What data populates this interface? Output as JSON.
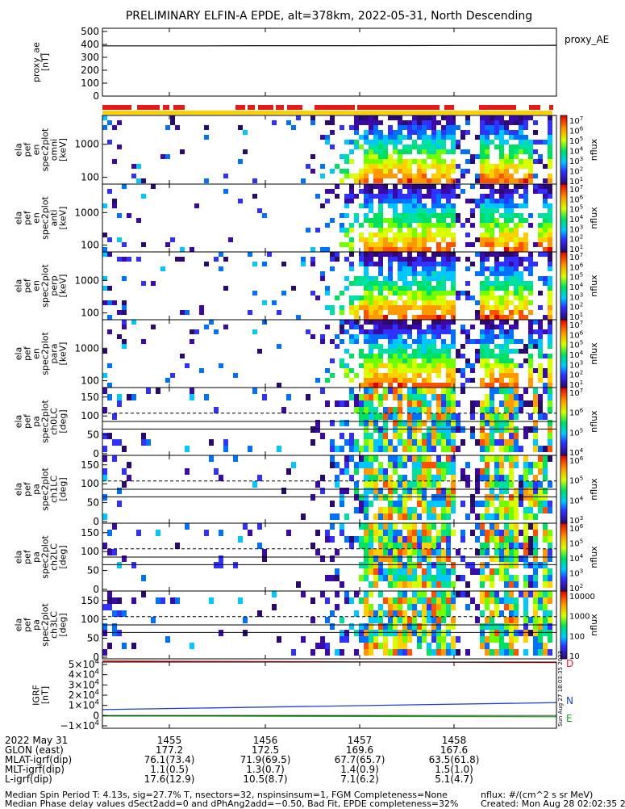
{
  "title": "PRELIMINARY ELFIN-A EPDE, alt=378km, 2022-05-31, North Descending",
  "colors": {
    "red": "#e41a1c",
    "blue": "#1f3fd6",
    "green": "#1aa31a",
    "yellow": "#ffd000"
  },
  "chart_data": {
    "type": "heatmap",
    "panels": [
      {
        "id": "proxy_ae",
        "kind": "line",
        "ylabel": [
          "proxy_ae",
          "[nT]"
        ],
        "legend": "proxy_AE",
        "yticks": [
          "500",
          "400",
          "300",
          "200",
          "100",
          "0"
        ],
        "ylim": [
          0,
          520
        ],
        "series": [
          {
            "values": [
              385,
              385,
              385,
              386,
              386,
              386,
              387,
              388,
              388,
              389
            ]
          }
        ]
      },
      {
        "id": "en_omni",
        "kind": "spectrogram",
        "ylabel": [
          "ela",
          "pef",
          "en",
          "spec2plot",
          "omni",
          "[keV]"
        ],
        "yticks": [
          "1000",
          "100"
        ],
        "log": true,
        "cbar": {
          "label": "nflux",
          "ticks": [
            "10^7",
            "10^6",
            "10^5",
            "10^4",
            "10^3",
            "10^2",
            "10^1"
          ]
        }
      },
      {
        "id": "en_anti",
        "kind": "spectrogram",
        "ylabel": [
          "ela",
          "pef",
          "en",
          "spec2plot",
          "anti",
          "[keV]"
        ],
        "yticks": [
          "1000",
          "100"
        ],
        "log": true,
        "cbar": {
          "label": "nflux",
          "ticks": [
            "10^7",
            "10^6",
            "10^5",
            "10^4",
            "10^3",
            "10^2",
            "10^1"
          ]
        }
      },
      {
        "id": "en_perp",
        "kind": "spectrogram",
        "ylabel": [
          "ela",
          "pef",
          "en",
          "spec2plot",
          "perp",
          "[keV]"
        ],
        "yticks": [
          "1000",
          "100"
        ],
        "log": true,
        "cbar": {
          "label": "nflux",
          "ticks": [
            "10^7",
            "10^6",
            "10^5",
            "10^4",
            "10^3",
            "10^2",
            "10^1"
          ]
        }
      },
      {
        "id": "en_para",
        "kind": "spectrogram",
        "ylabel": [
          "ela",
          "pef",
          "en",
          "spec2plot",
          "para",
          "[keV]"
        ],
        "yticks": [
          "1000",
          "100"
        ],
        "log": true,
        "cbar": {
          "label": "nflux",
          "ticks": [
            "10^7",
            "10^6",
            "10^5",
            "10^4",
            "10^3",
            "10^2",
            "10^1"
          ]
        }
      },
      {
        "id": "pa_ch0",
        "kind": "spectrogram",
        "ylabel": [
          "ela",
          "pef",
          "pa",
          "spec2plot",
          "ch0LC",
          "[deg]"
        ],
        "yticks": [
          "150",
          "100",
          "50",
          "0"
        ],
        "cbar": {
          "label": "nflux",
          "ticks": [
            "10^7",
            "10^6",
            "10^5",
            "10^4"
          ]
        }
      },
      {
        "id": "pa_ch1",
        "kind": "spectrogram",
        "ylabel": [
          "ela",
          "pef",
          "pa",
          "spec2plot",
          "ch1LC",
          "[deg]"
        ],
        "yticks": [
          "150",
          "100",
          "50",
          "0"
        ],
        "cbar": {
          "label": "nflux",
          "ticks": [
            "10^6",
            "10^5",
            "10^4",
            "10^3"
          ]
        }
      },
      {
        "id": "pa_ch2",
        "kind": "spectrogram",
        "ylabel": [
          "ela",
          "pef",
          "pa",
          "spec2plot",
          "ch2LC",
          "[deg]"
        ],
        "yticks": [
          "150",
          "100",
          "50",
          "0"
        ],
        "cbar": {
          "label": "nflux",
          "ticks": [
            "10^6",
            "10^5",
            "10^4",
            "10^3",
            "10^2"
          ]
        }
      },
      {
        "id": "pa_ch3",
        "kind": "spectrogram",
        "ylabel": [
          "ela",
          "pef",
          "pa",
          "spec2plot",
          "ch3LC",
          "[deg]"
        ],
        "yticks": [
          "150",
          "100",
          "50",
          "0"
        ],
        "cbar": {
          "label": "nflux",
          "ticks": [
            "10000",
            "1000",
            "100",
            "10"
          ]
        }
      },
      {
        "id": "igrf",
        "kind": "line",
        "ylabel": [
          "IGRF",
          "[nT]"
        ],
        "yticks": [
          "5×10^4",
          "4×10^4",
          "3×10^4",
          "2×10^4",
          "1×10^4",
          "0",
          "−1×10^4"
        ],
        "series": [
          {
            "name": "D",
            "start": 5.1,
            "end": 4.95
          },
          {
            "name": "N",
            "start": 0.55,
            "end": 1.2
          },
          {
            "name": "E",
            "start": -0.05,
            "end": -0.12
          }
        ]
      }
    ],
    "xticks": [
      "1455",
      "1456",
      "1457",
      "1458"
    ],
    "side_stamp": "Sun Aug 27 18:03:35 2023"
  },
  "orbit_table": [
    {
      "label": "2022 May 31",
      "values": [
        "1455",
        "1456",
        "1457",
        "1458"
      ]
    },
    {
      "label": "GLON (east)",
      "values": [
        "177.2",
        "172.5",
        "169.6",
        "167.6"
      ]
    },
    {
      "label": "MLAT-igrf(dip)",
      "values": [
        "76.1(73.4)",
        "71.9(69.5)",
        "67.7(65.7)",
        "63.5(61.8)"
      ]
    },
    {
      "label": "MLT-igrf(dip)",
      "values": [
        "1.1(0.5)",
        "1.3(0.7)",
        "1.4(0.9)",
        "1.5(1.0)"
      ]
    },
    {
      "label": "L-igrf(dip)",
      "values": [
        "17.6(12.9)",
        "10.5(8.7)",
        "7.1(6.2)",
        "5.1(4.7)"
      ]
    }
  ],
  "footer": {
    "line1": "Median Spin Period T: 4.13s, sig=27.7% T, nsectors=32, nspinsinsum=1, FGM Completeness=None",
    "line2": "Median Phase delay values dSect2add=0 and dPhAng2add=−0.50, Bad Fit, EPDE completeness=32%",
    "units": "nflux: #/(cm^2 s sr MeV)",
    "created": "Created: Mon Aug 28 02:02:35 2023"
  }
}
